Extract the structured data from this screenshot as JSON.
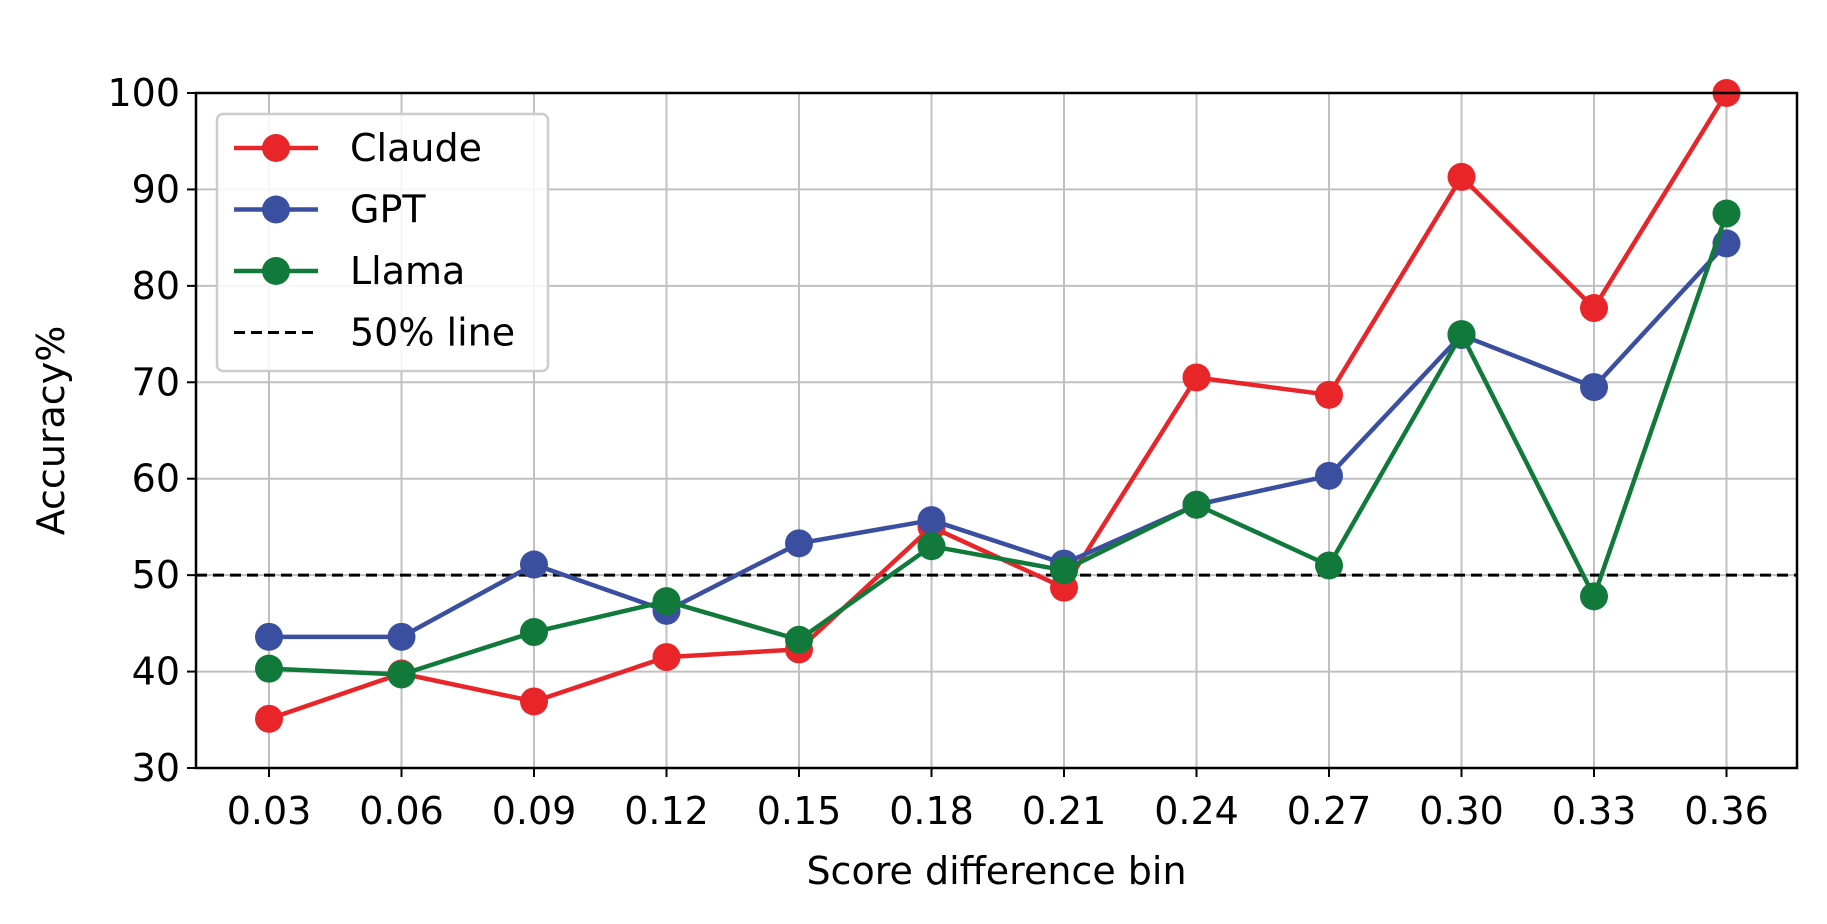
{
  "chart_data": {
    "type": "line",
    "xlabel": "Score difference bin",
    "ylabel": "Accuracy%",
    "categories": [
      "0.03",
      "0.06",
      "0.09",
      "0.12",
      "0.15",
      "0.18",
      "0.21",
      "0.24",
      "0.27",
      "0.30",
      "0.33",
      "0.36"
    ],
    "ylim": [
      30,
      100
    ],
    "yticks": [
      "30",
      "40",
      "50",
      "60",
      "70",
      "80",
      "90",
      "100"
    ],
    "grid": true,
    "legend_position": "top-left",
    "series": [
      {
        "name": "Claude",
        "color": "#e8262a",
        "values": [
          35.1,
          39.8,
          36.9,
          41.5,
          42.3,
          55.0,
          48.7,
          70.5,
          68.7,
          91.3,
          77.7,
          100.0
        ]
      },
      {
        "name": "GPT",
        "color": "#3b4fa0",
        "values": [
          43.6,
          43.6,
          51.1,
          46.3,
          53.3,
          55.7,
          51.2,
          57.3,
          60.3,
          74.9,
          69.5,
          84.4
        ]
      },
      {
        "name": "Llama",
        "color": "#117a3a",
        "values": [
          40.3,
          39.7,
          44.1,
          47.3,
          43.3,
          53.0,
          50.5,
          57.3,
          51.0,
          75.0,
          47.8,
          87.5
        ]
      }
    ],
    "reference_line": {
      "name": "50% line",
      "value": 50,
      "color": "#000000",
      "style": "dashed"
    }
  }
}
